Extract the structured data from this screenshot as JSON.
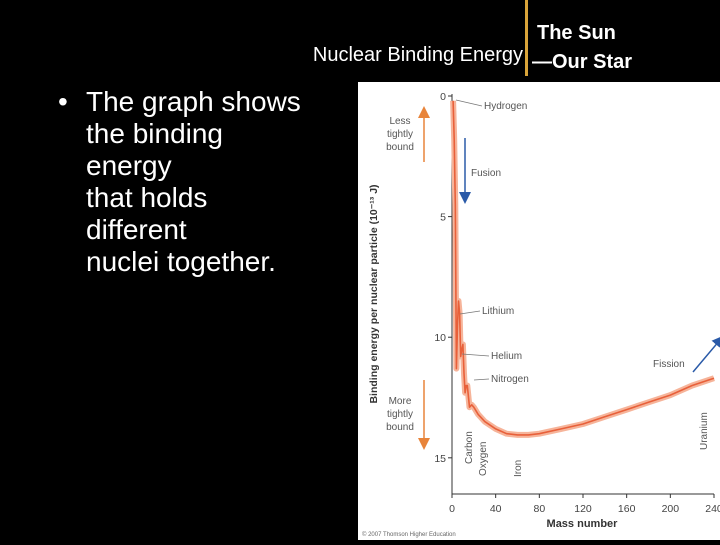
{
  "slide": {
    "header_subtitle": "Nuclear Binding Energy",
    "title_line1": "The Sun",
    "title_line2": "—Our Star",
    "bullet_lines": [
      "The graph shows",
      "the binding",
      "energy",
      "that holds",
      "different",
      "nuclei together."
    ]
  },
  "colors": {
    "background": "#000000",
    "accent_divider": "#d9a43a",
    "curve": "#e8603a",
    "curve_glow": "#f6b49a",
    "arrow_orange": "#e8843a",
    "arrow_blue": "#2a5aa8",
    "text_gray": "#555555"
  },
  "chart_data": {
    "type": "line",
    "xlabel": "Mass number",
    "ylabel": "Binding energy per nuclear particle (10⁻¹³ J)",
    "xlim": [
      0,
      240
    ],
    "ylim": [
      0,
      16.5
    ],
    "y_inverted": true,
    "x_ticks": [
      "0",
      "40",
      "80",
      "120",
      "160",
      "200",
      "240"
    ],
    "y_ticks": [
      "0",
      "5",
      "10",
      "15"
    ],
    "series": [
      {
        "points": [
          [
            1,
            0.2
          ],
          [
            2,
            1.8
          ],
          [
            3,
            4.5
          ],
          [
            4,
            11.3
          ],
          [
            5,
            9.5
          ],
          [
            6,
            8.5
          ],
          [
            7,
            9.0
          ],
          [
            8,
            10.8
          ],
          [
            9,
            10.5
          ],
          [
            10,
            10.3
          ],
          [
            11,
            11.5
          ],
          [
            12,
            12.3
          ],
          [
            13,
            12.0
          ],
          [
            14,
            12.0
          ],
          [
            16,
            12.9
          ],
          [
            18,
            12.8
          ],
          [
            20,
            12.9
          ],
          [
            24,
            13.2
          ],
          [
            30,
            13.5
          ],
          [
            40,
            13.8
          ],
          [
            50,
            14.0
          ],
          [
            60,
            14.05
          ],
          [
            70,
            14.05
          ],
          [
            80,
            14.0
          ],
          [
            100,
            13.8
          ],
          [
            120,
            13.6
          ],
          [
            140,
            13.3
          ],
          [
            160,
            13.0
          ],
          [
            180,
            12.7
          ],
          [
            200,
            12.4
          ],
          [
            220,
            12.0
          ],
          [
            240,
            11.7
          ]
        ]
      }
    ],
    "annotations": {
      "hydrogen": "Hydrogen",
      "lithium": "Lithium",
      "helium": "Helium",
      "nitrogen": "Nitrogen",
      "carbon": "Carbon",
      "oxygen": "Oxygen",
      "iron": "Iron",
      "uranium": "Uranium",
      "fusion": "Fusion",
      "fission": "Fission",
      "less_tightly_bound": [
        "Less",
        "tightly",
        "bound"
      ],
      "more_tightly_bound": [
        "More",
        "tightly",
        "bound"
      ]
    },
    "copyright": "© 2007 Thomson Higher Education"
  }
}
